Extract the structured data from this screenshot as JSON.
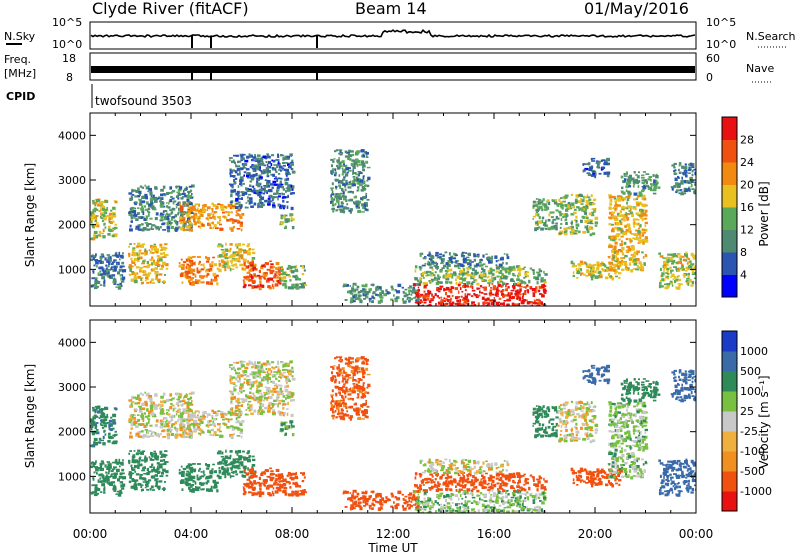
{
  "header": {
    "station": "Clyde River (fitACF)",
    "beam": "Beam 14",
    "date": "01/May/2016"
  },
  "param_panels": {
    "nsky_label": "N.Sky",
    "nsearch_label": "N.Search",
    "nsky_ticks": [
      "10^5",
      "10^0"
    ],
    "nsearch_ticks": [
      "10^5",
      "10^0"
    ],
    "freq_label": "Freq.",
    "freq_unit": "[MHz]",
    "freq_ticks": [
      "18",
      "8"
    ],
    "nave_label": "Nave",
    "nave_ticks": [
      "60",
      "0"
    ],
    "cpid_label": "CPID",
    "cpid_value": "twofsound 3503"
  },
  "colors": {
    "power_scale": [
      "#0000ff",
      "#2a55b0",
      "#4e8a72",
      "#5aa85a",
      "#e8c020",
      "#f08a10",
      "#f05010",
      "#e81010"
    ],
    "velocity_scale": [
      "#e81010",
      "#f05010",
      "#f09020",
      "#f0b040",
      "#c8c8c8",
      "#78c040",
      "#2f8a5a",
      "#3a6aa8",
      "#1a3ac8"
    ]
  },
  "chart_data": [
    {
      "type": "heatmap",
      "name_id": "power",
      "ylabel": "Slant Range [km]",
      "xlabel": "",
      "y_ticks": [
        1000,
        2000,
        3000,
        4000
      ],
      "ylim": [
        180,
        4500
      ],
      "colorbar_label": "Power [dB]",
      "colorbar_ticks": [
        "28",
        "24",
        "20",
        "16",
        "12",
        "8",
        "4"
      ],
      "colorbar_range": [
        0,
        30
      ],
      "blobs": [
        {
          "t0": 0.0,
          "t1": 1.0,
          "r0": 1700,
          "r1": 2600,
          "v": 16
        },
        {
          "t0": 0.0,
          "t1": 1.3,
          "r0": 600,
          "r1": 1400,
          "v": 8
        },
        {
          "t0": 1.5,
          "t1": 3.0,
          "r0": 700,
          "r1": 1600,
          "v": 18
        },
        {
          "t0": 1.5,
          "t1": 4.0,
          "r0": 1900,
          "r1": 2900,
          "v": 9
        },
        {
          "t0": 3.5,
          "t1": 5.0,
          "r0": 700,
          "r1": 1300,
          "v": 22
        },
        {
          "t0": 3.5,
          "t1": 6.0,
          "r0": 1900,
          "r1": 2500,
          "v": 20
        },
        {
          "t0": 5.0,
          "t1": 6.5,
          "r0": 1000,
          "r1": 1600,
          "v": 17
        },
        {
          "t0": 6.0,
          "t1": 7.5,
          "r0": 600,
          "r1": 1200,
          "v": 24
        },
        {
          "t0": 5.5,
          "t1": 8.0,
          "r0": 2400,
          "r1": 3600,
          "v": 7
        },
        {
          "t0": 7.5,
          "t1": 8.0,
          "r0": 1900,
          "r1": 2300,
          "v": 14
        },
        {
          "t0": 7.5,
          "t1": 8.5,
          "r0": 600,
          "r1": 1100,
          "v": 12
        },
        {
          "t0": 9.5,
          "t1": 11.0,
          "r0": 2300,
          "r1": 3700,
          "v": 10
        },
        {
          "t0": 10.0,
          "t1": 13.0,
          "r0": 300,
          "r1": 700,
          "v": 10
        },
        {
          "t0": 12.8,
          "t1": 18.0,
          "r0": 180,
          "r1": 700,
          "v": 28
        },
        {
          "t0": 12.8,
          "t1": 18.0,
          "r0": 700,
          "r1": 1100,
          "v": 13
        },
        {
          "t0": 13.0,
          "t1": 16.5,
          "r0": 1100,
          "r1": 1400,
          "v": 8
        },
        {
          "t0": 17.5,
          "t1": 18.5,
          "r0": 1900,
          "r1": 2600,
          "v": 12
        },
        {
          "t0": 18.5,
          "t1": 20.0,
          "r0": 1800,
          "r1": 2700,
          "v": 14
        },
        {
          "t0": 19.0,
          "t1": 21.0,
          "r0": 800,
          "r1": 1200,
          "v": 16
        },
        {
          "t0": 20.5,
          "t1": 22.0,
          "r0": 1000,
          "r1": 2700,
          "v": 18
        },
        {
          "t0": 21.0,
          "t1": 22.5,
          "r0": 2700,
          "r1": 3200,
          "v": 11
        },
        {
          "t0": 22.5,
          "t1": 24.0,
          "r0": 600,
          "r1": 1400,
          "v": 16
        },
        {
          "t0": 23.0,
          "t1": 24.0,
          "r0": 2700,
          "r1": 3400,
          "v": 8
        },
        {
          "t0": 19.5,
          "t1": 20.5,
          "r0": 3100,
          "r1": 3500,
          "v": 7
        }
      ]
    },
    {
      "type": "heatmap",
      "name_id": "velocity",
      "ylabel": "Slant Range [km]",
      "xlabel": "Time UT",
      "y_ticks": [
        1000,
        2000,
        3000,
        4000
      ],
      "ylim": [
        180,
        4500
      ],
      "x_ticks": [
        "00:00",
        "04:00",
        "08:00",
        "12:00",
        "16:00",
        "20:00",
        "00:00"
      ],
      "xlim": [
        0,
        24
      ],
      "colorbar_label": "Velocity [m s⁻¹]",
      "colorbar_ticks": [
        "1000",
        "500",
        "100",
        "25",
        "-25",
        "-100",
        "-500",
        "-1000"
      ],
      "colorbar_range": [
        -1200,
        1200
      ],
      "blobs": [
        {
          "t0": 0.0,
          "t1": 1.0,
          "r0": 1700,
          "r1": 2600,
          "v": 450
        },
        {
          "t0": 0.0,
          "t1": 1.3,
          "r0": 600,
          "r1": 1400,
          "v": 300
        },
        {
          "t0": 1.5,
          "t1": 3.0,
          "r0": 700,
          "r1": 1600,
          "v": 200
        },
        {
          "t0": 1.5,
          "t1": 4.0,
          "r0": 1900,
          "r1": 2900,
          "v": 0
        },
        {
          "t0": 3.5,
          "t1": 5.0,
          "r0": 700,
          "r1": 1300,
          "v": 250
        },
        {
          "t0": 3.5,
          "t1": 6.0,
          "r0": 1900,
          "r1": 2500,
          "v": 0
        },
        {
          "t0": 5.0,
          "t1": 6.5,
          "r0": 1000,
          "r1": 1600,
          "v": 180
        },
        {
          "t0": 6.0,
          "t1": 7.5,
          "r0": 600,
          "r1": 1200,
          "v": -200
        },
        {
          "t0": 5.5,
          "t1": 8.0,
          "r0": 2400,
          "r1": 3600,
          "v": 0
        },
        {
          "t0": 7.5,
          "t1": 8.0,
          "r0": 1900,
          "r1": 2300,
          "v": 120
        },
        {
          "t0": 7.5,
          "t1": 8.5,
          "r0": 600,
          "r1": 1100,
          "v": -250
        },
        {
          "t0": 9.5,
          "t1": 11.0,
          "r0": 2300,
          "r1": 3700,
          "v": -150
        },
        {
          "t0": 10.0,
          "t1": 13.0,
          "r0": 300,
          "r1": 700,
          "v": -200
        },
        {
          "t0": 12.8,
          "t1": 18.0,
          "r0": 180,
          "r1": 700,
          "v": 60
        },
        {
          "t0": 12.8,
          "t1": 18.0,
          "r0": 700,
          "r1": 1100,
          "v": -200
        },
        {
          "t0": 13.0,
          "t1": 16.5,
          "r0": 1100,
          "r1": 1400,
          "v": 0
        },
        {
          "t0": 17.5,
          "t1": 18.5,
          "r0": 1900,
          "r1": 2600,
          "v": 200
        },
        {
          "t0": 18.5,
          "t1": 20.0,
          "r0": 1800,
          "r1": 2700,
          "v": 0
        },
        {
          "t0": 19.0,
          "t1": 21.0,
          "r0": 800,
          "r1": 1200,
          "v": -250
        },
        {
          "t0": 20.5,
          "t1": 22.0,
          "r0": 1000,
          "r1": 2700,
          "v": 60
        },
        {
          "t0": 21.0,
          "t1": 22.5,
          "r0": 2700,
          "r1": 3200,
          "v": 400
        },
        {
          "t0": 22.5,
          "t1": 24.0,
          "r0": 600,
          "r1": 1400,
          "v": 900
        },
        {
          "t0": 23.0,
          "t1": 24.0,
          "r0": 2700,
          "r1": 3400,
          "v": 800
        },
        {
          "t0": 19.5,
          "t1": 20.5,
          "r0": 3100,
          "r1": 3500,
          "v": 700
        }
      ]
    }
  ]
}
